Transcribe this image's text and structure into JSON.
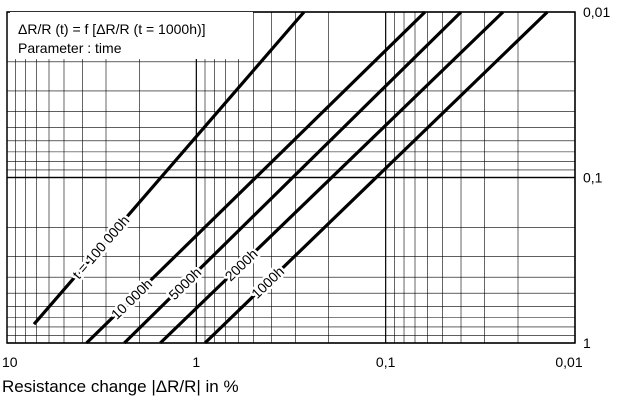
{
  "chart_data": {
    "type": "line",
    "title": "",
    "xlabel": "Resistance change |ΔR/R| in %",
    "ylabel": "",
    "x_scale": "log",
    "y_scale": "log",
    "x_reversed": true,
    "y_reversed": true,
    "xlim": [
      10,
      0.01
    ],
    "ylim": [
      1,
      0.01
    ],
    "x_ticks": [
      "10",
      "1",
      "0,1",
      "0,01"
    ],
    "y_ticks": [
      "0,01",
      "0,1",
      "1"
    ],
    "y_axis_side": "right",
    "grid": true,
    "legend": {
      "position": "top-left",
      "lines": [
        "ΔR/R (t) = f [ΔR/R (t = 1000h)]",
        "Parameter : time"
      ]
    },
    "series": [
      {
        "name": "t = 100 000h",
        "x": [
          7.2,
          0.27
        ],
        "y": [
          0.77,
          0.01
        ]
      },
      {
        "name": "10 000h",
        "x": [
          3.8,
          0.062
        ],
        "y": [
          1,
          0.01
        ]
      },
      {
        "name": "5000h",
        "x": [
          2.4,
          0.04
        ],
        "y": [
          1,
          0.01
        ]
      },
      {
        "name": "2000h",
        "x": [
          1.55,
          0.024
        ],
        "y": [
          1,
          0.01
        ]
      },
      {
        "name": "1000h",
        "x": [
          0.9,
          0.014
        ],
        "y": [
          1,
          0.01
        ]
      }
    ]
  }
}
